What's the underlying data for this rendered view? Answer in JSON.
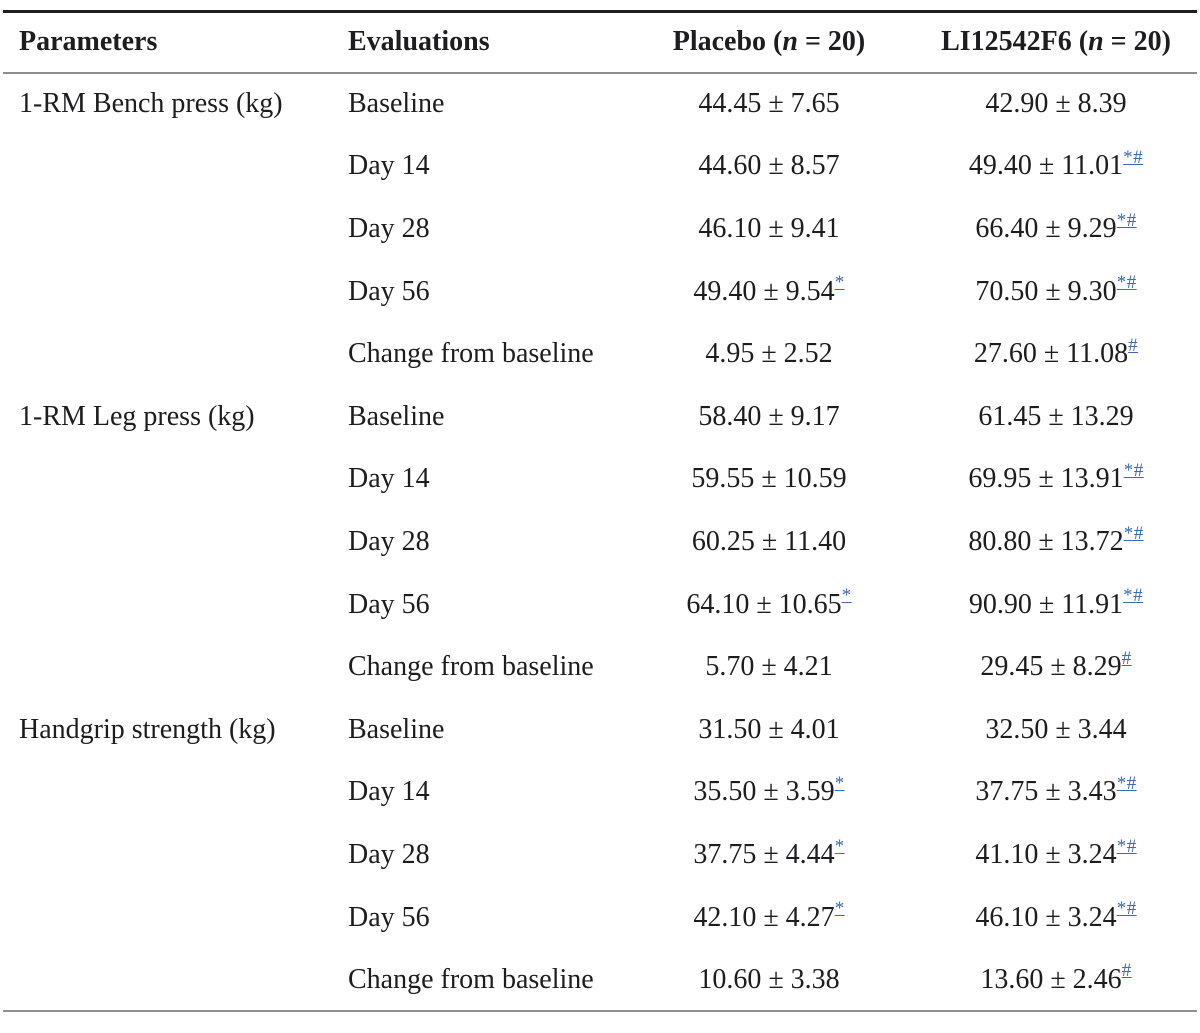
{
  "table": {
    "header": {
      "parameters": "Parameters",
      "evaluations": "Evaluations",
      "placebo": {
        "pre": "Placebo (",
        "n": "n",
        "post": " = 20)"
      },
      "treatment": {
        "pre": "LI12542F6 (",
        "n": "n",
        "post": " = 20)"
      }
    },
    "footnote_marker_color": "#3d6cb4",
    "rows": [
      {
        "parameter": "1-RM Bench press (kg)",
        "evaluation": "Baseline",
        "placebo": {
          "value": "44.45 ± 7.65",
          "sup": ""
        },
        "treatment": {
          "value": "42.90 ± 8.39",
          "sup": ""
        }
      },
      {
        "parameter": "",
        "evaluation": "Day 14",
        "placebo": {
          "value": "44.60 ± 8.57",
          "sup": ""
        },
        "treatment": {
          "value": "49.40 ± 11.01",
          "sup": "*#"
        }
      },
      {
        "parameter": "",
        "evaluation": "Day 28",
        "placebo": {
          "value": "46.10 ± 9.41",
          "sup": ""
        },
        "treatment": {
          "value": "66.40 ± 9.29",
          "sup": "*#"
        }
      },
      {
        "parameter": "",
        "evaluation": "Day 56",
        "placebo": {
          "value": "49.40 ± 9.54",
          "sup": "*"
        },
        "treatment": {
          "value": "70.50 ± 9.30",
          "sup": "*#"
        }
      },
      {
        "parameter": "",
        "evaluation": "Change from baseline",
        "placebo": {
          "value": "4.95 ± 2.52",
          "sup": ""
        },
        "treatment": {
          "value": "27.60 ± 11.08",
          "sup": "#"
        }
      },
      {
        "parameter": "1-RM Leg press (kg)",
        "evaluation": "Baseline",
        "placebo": {
          "value": "58.40 ± 9.17",
          "sup": ""
        },
        "treatment": {
          "value": "61.45 ± 13.29",
          "sup": ""
        }
      },
      {
        "parameter": "",
        "evaluation": "Day 14",
        "placebo": {
          "value": "59.55 ± 10.59",
          "sup": ""
        },
        "treatment": {
          "value": "69.95 ± 13.91",
          "sup": "*#"
        }
      },
      {
        "parameter": "",
        "evaluation": "Day 28",
        "placebo": {
          "value": "60.25 ± 11.40",
          "sup": ""
        },
        "treatment": {
          "value": "80.80 ± 13.72",
          "sup": "*#"
        }
      },
      {
        "parameter": "",
        "evaluation": "Day 56",
        "placebo": {
          "value": "64.10 ± 10.65",
          "sup": "*"
        },
        "treatment": {
          "value": "90.90 ± 11.91",
          "sup": "*#"
        }
      },
      {
        "parameter": "",
        "evaluation": "Change from baseline",
        "placebo": {
          "value": "5.70 ± 4.21",
          "sup": ""
        },
        "treatment": {
          "value": "29.45 ± 8.29",
          "sup": "#"
        }
      },
      {
        "parameter": "Handgrip strength (kg)",
        "evaluation": "Baseline",
        "placebo": {
          "value": "31.50 ± 4.01",
          "sup": ""
        },
        "treatment": {
          "value": "32.50 ± 3.44",
          "sup": ""
        }
      },
      {
        "parameter": "",
        "evaluation": "Day 14",
        "placebo": {
          "value": "35.50 ± 3.59",
          "sup": "*"
        },
        "treatment": {
          "value": "37.75 ± 3.43",
          "sup": "*#"
        }
      },
      {
        "parameter": "",
        "evaluation": "Day 28",
        "placebo": {
          "value": "37.75 ± 4.44",
          "sup": "*"
        },
        "treatment": {
          "value": "41.10 ± 3.24",
          "sup": "*#"
        }
      },
      {
        "parameter": "",
        "evaluation": "Day 56",
        "placebo": {
          "value": "42.10 ± 4.27",
          "sup": "*"
        },
        "treatment": {
          "value": "46.10 ± 3.24",
          "sup": "*#"
        }
      },
      {
        "parameter": "",
        "evaluation": "Change from baseline",
        "placebo": {
          "value": "10.60 ± 3.38",
          "sup": ""
        },
        "treatment": {
          "value": "13.60 ± 2.46",
          "sup": "#"
        }
      }
    ]
  }
}
